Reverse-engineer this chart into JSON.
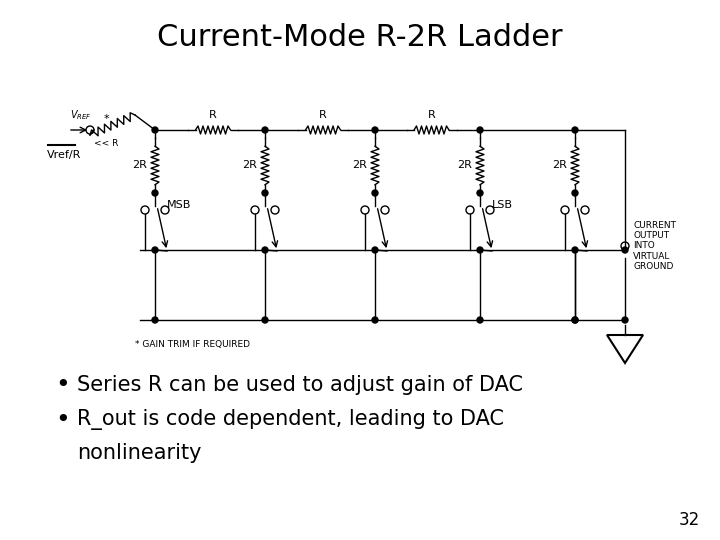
{
  "title": "Current-Mode R-2R Ladder",
  "title_fontsize": 22,
  "title_fontweight": "normal",
  "background_color": "#ffffff",
  "bullet1": "Series R can be used to adjust gain of DAC",
  "bullet2_line1": "R_out is code dependent, leading to DAC",
  "bullet2_line2": "nonlinearity",
  "bullet_fontsize": 15,
  "page_number": "32",
  "page_num_fontsize": 12,
  "line_color": "#000000",
  "text_color": "#000000"
}
